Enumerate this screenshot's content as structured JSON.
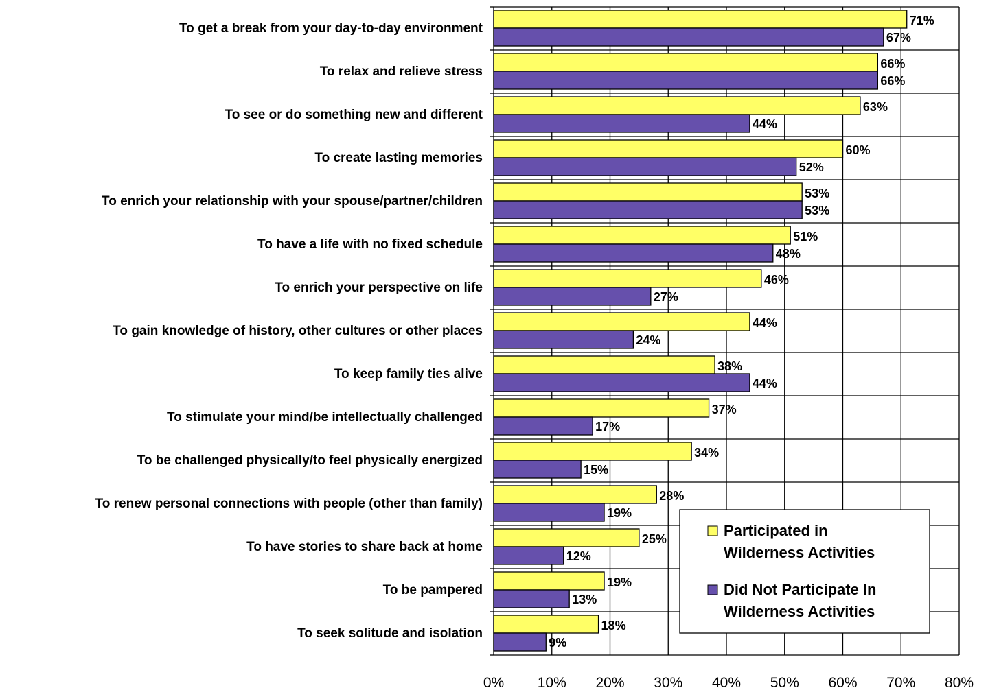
{
  "chart_data": {
    "type": "bar",
    "orientation": "horizontal",
    "categories": [
      "To get a break from your day-to-day environment",
      "To relax and relieve stress",
      "To see or do something new and different",
      "To create lasting memories",
      "To enrich your relationship with your spouse/partner/children",
      "To have a life with no fixed schedule",
      "To enrich your perspective on life",
      "To gain knowledge of history, other cultures or other places",
      "To keep family ties alive",
      "To stimulate your mind/be intellectually challenged",
      "To be challenged physically/to feel physically energized",
      "To renew personal connections with people (other than family)",
      "To have stories to share back at home",
      "To be pampered",
      "To seek solitude and isolation"
    ],
    "series": [
      {
        "name": "Participated in Wilderness Activities",
        "color": "#FFFF66",
        "values": [
          71,
          66,
          63,
          60,
          53,
          51,
          46,
          44,
          38,
          37,
          34,
          28,
          25,
          19,
          18
        ],
        "labels": [
          "71%",
          "66%",
          "63%",
          "60%",
          "53%",
          "51%",
          "46%",
          "44%",
          "38%",
          "37%",
          "34%",
          "28%",
          "25%",
          "19%",
          "18%"
        ]
      },
      {
        "name": "Did Not Participate In Wilderness Activities",
        "color": "#6650AC",
        "values": [
          67,
          66,
          44,
          52,
          53,
          48,
          27,
          24,
          44,
          17,
          15,
          19,
          12,
          13,
          9
        ],
        "labels": [
          "67%",
          "66%",
          "44%",
          "52%",
          "53%",
          "48%",
          "27%",
          "24%",
          "44%",
          "17%",
          "15%",
          "19%",
          "12%",
          "13%",
          "9%"
        ]
      }
    ],
    "xlim": [
      0,
      80
    ],
    "xticks": [
      "0%",
      "10%",
      "20%",
      "30%",
      "40%",
      "50%",
      "60%",
      "70%",
      "80%"
    ],
    "grid": true,
    "legend": {
      "placement": "bottom-right",
      "entries": [
        [
          "Participated in",
          "Wilderness Activities"
        ],
        [
          "Did Not Participate In",
          "Wilderness Activities"
        ]
      ]
    },
    "title": "",
    "xlabel": "",
    "ylabel": ""
  }
}
